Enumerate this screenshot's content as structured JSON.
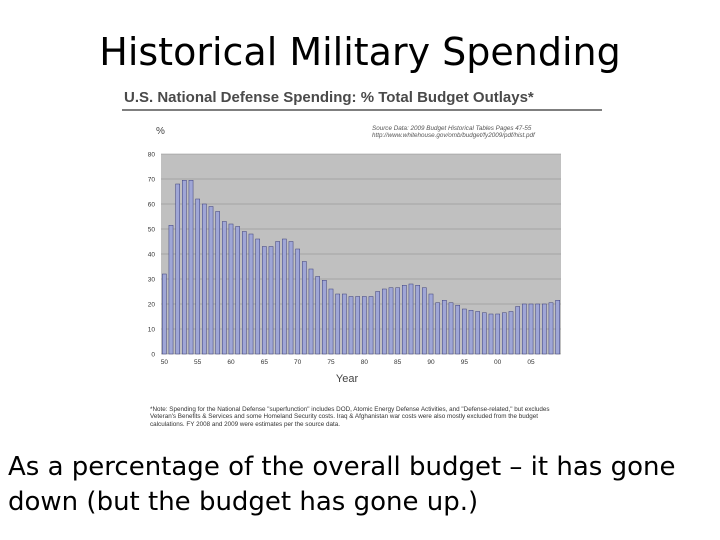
{
  "slide": {
    "title": "Historical Military Spending",
    "caption": "As a percentage of the overall budget – it has gone down (but the budget has gone up.)"
  },
  "chart_data": {
    "type": "bar",
    "title": "U.S. National Defense Spending: % Total Budget Outlays*",
    "xlabel": "Year",
    "ylabel": "%",
    "ylim": [
      0,
      80
    ],
    "yticks": [
      0,
      10,
      20,
      30,
      40,
      50,
      60,
      70,
      80
    ],
    "grid": true,
    "source_lines": [
      "Source Data:  2009 Budget Historical Tables Pages 47-55",
      "http://www.whitehouse.gov/omb/budget/fy2009/pdf/hist.pdf"
    ],
    "note": "*Note: Spending for the National Defense \"superfunction\" includes DOD, Atomic Energy Defense Activities, and \"Defense-related,\" but excludes Veteran's Benefits & Services and some Homeland Security costs.  Iraq & Afghanistan war costs were also mostly excluded from the budget calculations.  FY 2008 and 2009 were estimates per the source data.",
    "x_tick_labels": [
      {
        "year": 1950,
        "label": "50"
      },
      {
        "year": 1955,
        "label": "55"
      },
      {
        "year": 1960,
        "label": "60"
      },
      {
        "year": 1965,
        "label": "65"
      },
      {
        "year": 1970,
        "label": "70"
      },
      {
        "year": 1975,
        "label": "75"
      },
      {
        "year": 1980,
        "label": "80"
      },
      {
        "year": 1985,
        "label": "85"
      },
      {
        "year": 1990,
        "label": "90"
      },
      {
        "year": 1995,
        "label": "95"
      },
      {
        "year": 2000,
        "label": "00"
      },
      {
        "year": 2005,
        "label": "05"
      }
    ],
    "categories": [
      1950,
      1951,
      1952,
      1953,
      1954,
      1955,
      1956,
      1957,
      1958,
      1959,
      1960,
      1961,
      1962,
      1963,
      1964,
      1965,
      1966,
      1967,
      1968,
      1969,
      1970,
      1971,
      1972,
      1973,
      1974,
      1975,
      1976,
      1977,
      1978,
      1979,
      1980,
      1981,
      1982,
      1983,
      1984,
      1985,
      1986,
      1987,
      1988,
      1989,
      1990,
      1991,
      1992,
      1993,
      1994,
      1995,
      1996,
      1997,
      1998,
      1999,
      2000,
      2001,
      2002,
      2003,
      2004,
      2005,
      2006,
      2007,
      2008,
      2009
    ],
    "values": [
      32,
      51.5,
      68,
      69.5,
      69.5,
      62,
      60,
      59,
      57,
      53,
      52,
      51,
      49,
      48,
      46,
      43,
      43,
      45,
      46,
      45,
      42,
      37,
      34,
      31,
      29.5,
      26,
      24,
      24,
      23,
      23,
      23,
      23,
      25,
      26,
      26.5,
      26.5,
      27.5,
      28,
      27.5,
      26.5,
      24,
      20.5,
      21.5,
      20.5,
      19.5,
      18,
      17.5,
      17,
      16.5,
      16,
      16,
      16.5,
      17,
      19,
      20,
      20,
      20,
      20,
      20.5,
      21.5
    ],
    "colors": {
      "bar_fill": "#9fa6d6",
      "bar_stroke": "#3c3f7a",
      "plot_bg": "#c0c0c0",
      "grid": "#8a8a8a"
    }
  }
}
